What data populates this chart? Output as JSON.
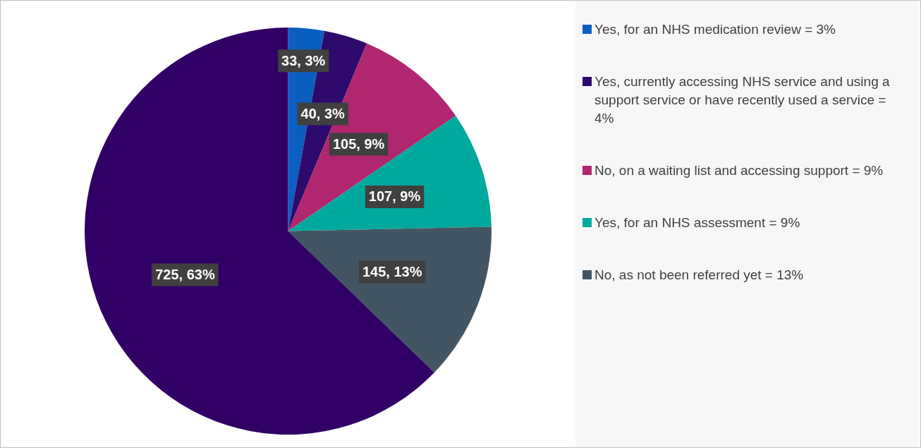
{
  "chart_data": {
    "type": "pie",
    "categories": [
      "Yes, for an NHS medication review = 3%",
      "Yes, currently accessing NHS service and using a support service or have recently used a service = 4%",
      "No, on a waiting list and accessing support = 9%",
      "Yes, for an NHS assessment = 9%",
      "No, as not been referred yet = 13%",
      null
    ],
    "values": [
      33,
      40,
      105,
      107,
      145,
      725
    ],
    "colors": [
      "#0a5fc0",
      "#2d0a6b",
      "#b0266f",
      "#00a99d",
      "#435563",
      "#300066"
    ],
    "value_labels": [
      "33, 3%",
      "40, 3%",
      "105, 9%",
      "107, 9%",
      "145, 13%",
      "725, 63%"
    ],
    "legend": "right"
  }
}
